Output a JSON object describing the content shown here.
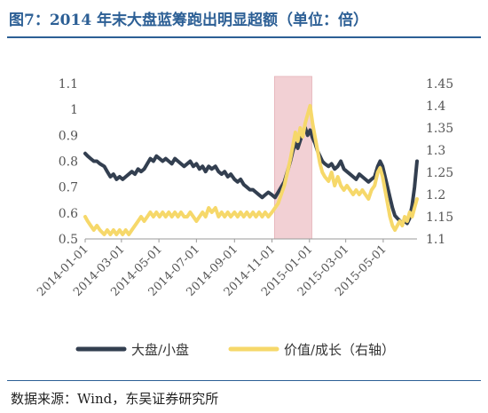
{
  "title": "图7：2014 年末大盘蓝筹跑出明显超额（单位：倍）",
  "source": "数据来源：Wind，东吴证券研究所",
  "chart_data": {
    "type": "line",
    "x_ticks": [
      "2014-01-01",
      "2014-03-01",
      "2014-05-01",
      "2014-07-01",
      "2014-09-01",
      "2014-11-01",
      "2015-01-01",
      "2015-03-01",
      "2015-05-01"
    ],
    "x_range": [
      "2014-01-01",
      "2015-06-25"
    ],
    "y_left": {
      "ticks": [
        "1.1",
        "1",
        "0.9",
        "0.8",
        "0.7",
        "0.6",
        "0.5"
      ],
      "range": [
        0.5,
        1.1
      ]
    },
    "y_right": {
      "ticks": [
        "1.45",
        "1.4",
        "1.35",
        "1.3",
        "1.25",
        "1.2",
        "1.15",
        "1.1"
      ],
      "range": [
        1.1,
        1.45
      ]
    },
    "highlight": {
      "from": "2014-11-05",
      "to": "2015-01-05",
      "color": "#f2d0d4"
    },
    "grid": false,
    "legend_position": "bottom",
    "series": [
      {
        "name": "大盘/小盘",
        "axis": "left",
        "color": "#333f50",
        "points": [
          [
            "2014-01-01",
            0.83
          ],
          [
            "2014-01-05",
            0.82
          ],
          [
            "2014-01-10",
            0.81
          ],
          [
            "2014-01-15",
            0.8
          ],
          [
            "2014-01-20",
            0.8
          ],
          [
            "2014-01-25",
            0.79
          ],
          [
            "2014-02-01",
            0.78
          ],
          [
            "2014-02-06",
            0.76
          ],
          [
            "2014-02-11",
            0.74
          ],
          [
            "2014-02-16",
            0.75
          ],
          [
            "2014-02-21",
            0.73
          ],
          [
            "2014-02-26",
            0.74
          ],
          [
            "2014-03-03",
            0.73
          ],
          [
            "2014-03-08",
            0.74
          ],
          [
            "2014-03-13",
            0.75
          ],
          [
            "2014-03-18",
            0.76
          ],
          [
            "2014-03-23",
            0.75
          ],
          [
            "2014-03-28",
            0.77
          ],
          [
            "2014-04-02",
            0.76
          ],
          [
            "2014-04-07",
            0.77
          ],
          [
            "2014-04-12",
            0.79
          ],
          [
            "2014-04-17",
            0.81
          ],
          [
            "2014-04-22",
            0.8
          ],
          [
            "2014-04-27",
            0.82
          ],
          [
            "2014-05-02",
            0.81
          ],
          [
            "2014-05-07",
            0.8
          ],
          [
            "2014-05-12",
            0.81
          ],
          [
            "2014-05-17",
            0.8
          ],
          [
            "2014-05-22",
            0.79
          ],
          [
            "2014-05-27",
            0.81
          ],
          [
            "2014-06-01",
            0.8
          ],
          [
            "2014-06-06",
            0.79
          ],
          [
            "2014-06-11",
            0.78
          ],
          [
            "2014-06-16",
            0.79
          ],
          [
            "2014-06-21",
            0.8
          ],
          [
            "2014-06-26",
            0.78
          ],
          [
            "2014-07-01",
            0.79
          ],
          [
            "2014-07-06",
            0.77
          ],
          [
            "2014-07-11",
            0.78
          ],
          [
            "2014-07-16",
            0.76
          ],
          [
            "2014-07-21",
            0.78
          ],
          [
            "2014-07-26",
            0.77
          ],
          [
            "2014-08-01",
            0.78
          ],
          [
            "2014-08-06",
            0.76
          ],
          [
            "2014-08-11",
            0.75
          ],
          [
            "2014-08-16",
            0.76
          ],
          [
            "2014-08-21",
            0.74
          ],
          [
            "2014-08-26",
            0.75
          ],
          [
            "2014-09-01",
            0.73
          ],
          [
            "2014-09-06",
            0.72
          ],
          [
            "2014-09-11",
            0.73
          ],
          [
            "2014-09-16",
            0.71
          ],
          [
            "2014-09-21",
            0.7
          ],
          [
            "2014-09-26",
            0.69
          ],
          [
            "2014-10-01",
            0.69
          ],
          [
            "2014-10-06",
            0.68
          ],
          [
            "2014-10-11",
            0.67
          ],
          [
            "2014-10-16",
            0.66
          ],
          [
            "2014-10-21",
            0.67
          ],
          [
            "2014-10-26",
            0.68
          ],
          [
            "2014-11-01",
            0.67
          ],
          [
            "2014-11-06",
            0.66
          ],
          [
            "2014-11-11",
            0.68
          ],
          [
            "2014-11-16",
            0.7
          ],
          [
            "2014-11-21",
            0.72
          ],
          [
            "2014-11-26",
            0.76
          ],
          [
            "2014-12-01",
            0.8
          ],
          [
            "2014-12-05",
            0.84
          ],
          [
            "2014-12-09",
            0.87
          ],
          [
            "2014-12-13",
            0.85
          ],
          [
            "2014-12-17",
            0.88
          ],
          [
            "2014-12-21",
            0.91
          ],
          [
            "2014-12-25",
            0.93
          ],
          [
            "2014-12-29",
            0.9
          ],
          [
            "2015-01-02",
            0.92
          ],
          [
            "2015-01-06",
            0.89
          ],
          [
            "2015-01-10",
            0.87
          ],
          [
            "2015-01-14",
            0.84
          ],
          [
            "2015-01-18",
            0.82
          ],
          [
            "2015-01-22",
            0.8
          ],
          [
            "2015-01-26",
            0.79
          ],
          [
            "2015-02-01",
            0.78
          ],
          [
            "2015-02-06",
            0.79
          ],
          [
            "2015-02-11",
            0.77
          ],
          [
            "2015-02-16",
            0.78
          ],
          [
            "2015-02-21",
            0.8
          ],
          [
            "2015-02-26",
            0.77
          ],
          [
            "2015-03-03",
            0.76
          ],
          [
            "2015-03-08",
            0.75
          ],
          [
            "2015-03-13",
            0.74
          ],
          [
            "2015-03-18",
            0.73
          ],
          [
            "2015-03-23",
            0.75
          ],
          [
            "2015-03-28",
            0.74
          ],
          [
            "2015-04-02",
            0.73
          ],
          [
            "2015-04-07",
            0.72
          ],
          [
            "2015-04-12",
            0.73
          ],
          [
            "2015-04-17",
            0.74
          ],
          [
            "2015-04-22",
            0.78
          ],
          [
            "2015-04-26",
            0.8
          ],
          [
            "2015-04-30",
            0.78
          ],
          [
            "2015-05-04",
            0.74
          ],
          [
            "2015-05-08",
            0.7
          ],
          [
            "2015-05-12",
            0.66
          ],
          [
            "2015-05-16",
            0.62
          ],
          [
            "2015-05-20",
            0.59
          ],
          [
            "2015-05-24",
            0.58
          ],
          [
            "2015-05-28",
            0.57
          ],
          [
            "2015-06-01",
            0.56
          ],
          [
            "2015-06-05",
            0.57
          ],
          [
            "2015-06-09",
            0.56
          ],
          [
            "2015-06-13",
            0.58
          ],
          [
            "2015-06-17",
            0.63
          ],
          [
            "2015-06-21",
            0.7
          ],
          [
            "2015-06-25",
            0.8
          ]
        ]
      },
      {
        "name": "价值/成长（右轴）",
        "axis": "right",
        "color": "#f6d86a",
        "points": [
          [
            "2014-01-01",
            1.15
          ],
          [
            "2014-01-05",
            1.14
          ],
          [
            "2014-01-10",
            1.13
          ],
          [
            "2014-01-15",
            1.12
          ],
          [
            "2014-01-20",
            1.13
          ],
          [
            "2014-01-25",
            1.12
          ],
          [
            "2014-02-01",
            1.11
          ],
          [
            "2014-02-06",
            1.12
          ],
          [
            "2014-02-11",
            1.11
          ],
          [
            "2014-02-16",
            1.12
          ],
          [
            "2014-02-21",
            1.11
          ],
          [
            "2014-02-26",
            1.12
          ],
          [
            "2014-03-03",
            1.11
          ],
          [
            "2014-03-08",
            1.12
          ],
          [
            "2014-03-13",
            1.11
          ],
          [
            "2014-03-18",
            1.12
          ],
          [
            "2014-03-23",
            1.13
          ],
          [
            "2014-03-28",
            1.14
          ],
          [
            "2014-04-02",
            1.15
          ],
          [
            "2014-04-07",
            1.14
          ],
          [
            "2014-04-12",
            1.15
          ],
          [
            "2014-04-17",
            1.16
          ],
          [
            "2014-04-22",
            1.15
          ],
          [
            "2014-04-27",
            1.16
          ],
          [
            "2014-05-02",
            1.15
          ],
          [
            "2014-05-07",
            1.16
          ],
          [
            "2014-05-12",
            1.15
          ],
          [
            "2014-05-17",
            1.16
          ],
          [
            "2014-05-22",
            1.15
          ],
          [
            "2014-05-27",
            1.16
          ],
          [
            "2014-06-01",
            1.15
          ],
          [
            "2014-06-06",
            1.16
          ],
          [
            "2014-06-11",
            1.15
          ],
          [
            "2014-06-16",
            1.15
          ],
          [
            "2014-06-21",
            1.16
          ],
          [
            "2014-06-26",
            1.15
          ],
          [
            "2014-07-01",
            1.14
          ],
          [
            "2014-07-06",
            1.15
          ],
          [
            "2014-07-11",
            1.16
          ],
          [
            "2014-07-16",
            1.15
          ],
          [
            "2014-07-21",
            1.17
          ],
          [
            "2014-07-26",
            1.16
          ],
          [
            "2014-08-01",
            1.17
          ],
          [
            "2014-08-06",
            1.15
          ],
          [
            "2014-08-11",
            1.16
          ],
          [
            "2014-08-16",
            1.15
          ],
          [
            "2014-08-21",
            1.16
          ],
          [
            "2014-08-26",
            1.15
          ],
          [
            "2014-09-01",
            1.16
          ],
          [
            "2014-09-06",
            1.15
          ],
          [
            "2014-09-11",
            1.16
          ],
          [
            "2014-09-16",
            1.15
          ],
          [
            "2014-09-21",
            1.16
          ],
          [
            "2014-09-26",
            1.15
          ],
          [
            "2014-10-01",
            1.16
          ],
          [
            "2014-10-06",
            1.15
          ],
          [
            "2014-10-11",
            1.16
          ],
          [
            "2014-10-16",
            1.15
          ],
          [
            "2014-10-21",
            1.16
          ],
          [
            "2014-10-26",
            1.15
          ],
          [
            "2014-11-01",
            1.16
          ],
          [
            "2014-11-06",
            1.17
          ],
          [
            "2014-11-11",
            1.18
          ],
          [
            "2014-11-16",
            1.2
          ],
          [
            "2014-11-21",
            1.22
          ],
          [
            "2014-11-26",
            1.25
          ],
          [
            "2014-12-01",
            1.28
          ],
          [
            "2014-12-05",
            1.31
          ],
          [
            "2014-12-09",
            1.34
          ],
          [
            "2014-12-13",
            1.32
          ],
          [
            "2014-12-17",
            1.35
          ],
          [
            "2014-12-21",
            1.33
          ],
          [
            "2014-12-25",
            1.36
          ],
          [
            "2014-12-29",
            1.38
          ],
          [
            "2015-01-02",
            1.4
          ],
          [
            "2015-01-06",
            1.36
          ],
          [
            "2015-01-10",
            1.33
          ],
          [
            "2015-01-14",
            1.3
          ],
          [
            "2015-01-18",
            1.27
          ],
          [
            "2015-01-22",
            1.25
          ],
          [
            "2015-01-26",
            1.24
          ],
          [
            "2015-02-01",
            1.23
          ],
          [
            "2015-02-06",
            1.25
          ],
          [
            "2015-02-11",
            1.22
          ],
          [
            "2015-02-16",
            1.24
          ],
          [
            "2015-02-21",
            1.22
          ],
          [
            "2015-02-26",
            1.21
          ],
          [
            "2015-03-03",
            1.22
          ],
          [
            "2015-03-08",
            1.21
          ],
          [
            "2015-03-13",
            1.2
          ],
          [
            "2015-03-18",
            1.21
          ],
          [
            "2015-03-23",
            1.2
          ],
          [
            "2015-03-28",
            1.21
          ],
          [
            "2015-04-02",
            1.2
          ],
          [
            "2015-04-07",
            1.19
          ],
          [
            "2015-04-12",
            1.21
          ],
          [
            "2015-04-17",
            1.22
          ],
          [
            "2015-04-22",
            1.25
          ],
          [
            "2015-04-26",
            1.26
          ],
          [
            "2015-04-30",
            1.24
          ],
          [
            "2015-05-04",
            1.21
          ],
          [
            "2015-05-08",
            1.18
          ],
          [
            "2015-05-12",
            1.15
          ],
          [
            "2015-05-16",
            1.13
          ],
          [
            "2015-05-20",
            1.12
          ],
          [
            "2015-05-24",
            1.13
          ],
          [
            "2015-05-28",
            1.14
          ],
          [
            "2015-06-01",
            1.13
          ],
          [
            "2015-06-05",
            1.15
          ],
          [
            "2015-06-09",
            1.14
          ],
          [
            "2015-06-13",
            1.16
          ],
          [
            "2015-06-17",
            1.15
          ],
          [
            "2015-06-21",
            1.17
          ],
          [
            "2015-06-25",
            1.19
          ]
        ]
      }
    ]
  }
}
